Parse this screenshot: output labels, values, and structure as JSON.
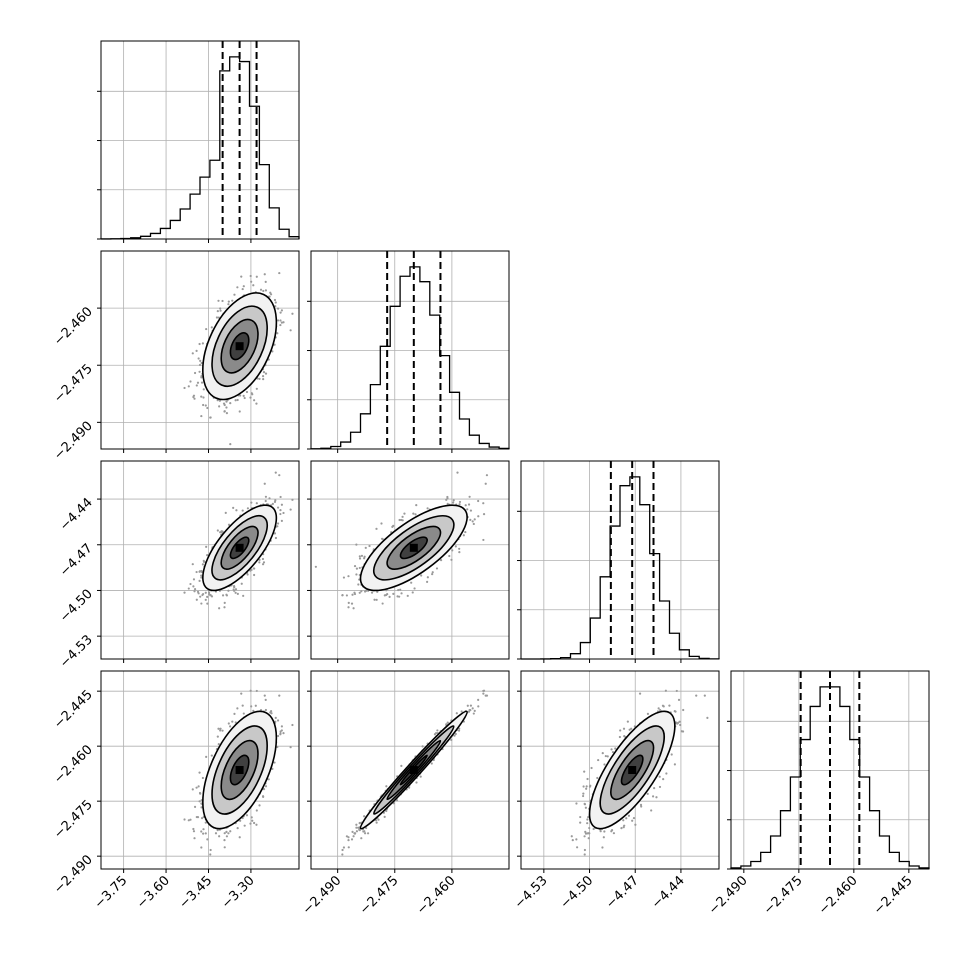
{
  "chart_data": {
    "type": "corner",
    "n_params": 4,
    "params": [
      {
        "median": -3.34,
        "q16": -3.4,
        "q84": -3.28,
        "sd": 0.065,
        "skew_left": true,
        "range": [
          -3.83,
          -3.13
        ],
        "ticks": [
          -3.75,
          -3.6,
          -3.45,
          -3.3
        ],
        "tick_labels": [
          "−3.75",
          "−3.60",
          "−3.45",
          "−3.30"
        ]
      },
      {
        "median": -2.47,
        "q16": -2.477,
        "q84": -2.463,
        "sd": 0.007,
        "skew_left": false,
        "range": [
          -2.497,
          -2.445
        ],
        "ticks": [
          -2.49,
          -2.475,
          -2.46
        ],
        "tick_labels": [
          "−2.490",
          "−2.475",
          "−2.460"
        ]
      },
      {
        "median": -4.472,
        "q16": -4.486,
        "q84": -4.458,
        "sd": 0.014,
        "skew_left": false,
        "range": [
          -4.545,
          -4.415
        ],
        "ticks": [
          -4.53,
          -4.5,
          -4.47,
          -4.44
        ],
        "tick_labels": [
          "−4.53",
          "−4.50",
          "−4.47",
          "−4.44"
        ]
      },
      {
        "median": -2.4665,
        "q16": -2.4745,
        "q84": -2.4585,
        "sd": 0.008,
        "skew_left": false,
        "range": [
          -2.4935,
          -2.4395
        ],
        "ticks": [
          -2.49,
          -2.475,
          -2.46,
          -2.445
        ],
        "tick_labels": [
          "−2.490",
          "−2.475",
          "−2.460",
          "−2.445"
        ]
      }
    ],
    "correlations": [
      {
        "row": 1,
        "col": 0,
        "rho": 0.45
      },
      {
        "row": 2,
        "col": 0,
        "rho": 0.7
      },
      {
        "row": 2,
        "col": 1,
        "rho": 0.72
      },
      {
        "row": 3,
        "col": 0,
        "rho": 0.55
      },
      {
        "row": 3,
        "col": 1,
        "rho": 0.985
      },
      {
        "row": 3,
        "col": 2,
        "rho": 0.75
      }
    ],
    "contour_levels_sigma": [
      0.5,
      1.0,
      1.5,
      2.0
    ],
    "quantile_lines": [
      "q16",
      "median",
      "q84"
    ],
    "density_colormap": [
      "#ffffff",
      "#000000"
    ],
    "scatter_color": "#9a9a9a",
    "grid": true
  }
}
